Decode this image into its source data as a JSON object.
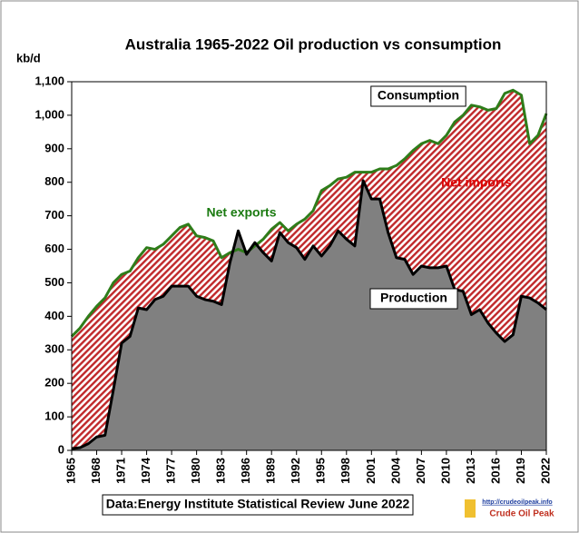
{
  "chart_data": {
    "type": "area",
    "title": "Australia  1965-2022 Oil production  vs consumption",
    "y_label": "kb/d",
    "source": "Data:Energy Institute Statistical Review June 2022",
    "logo": {
      "url": "http://crudeoilpeak.info",
      "name": "Crude Oil Peak"
    },
    "annotations": [
      {
        "text": "Consumption",
        "color": "#000000",
        "boxed": true
      },
      {
        "text": "Net exports",
        "color": "#1a7a10",
        "boxed": false
      },
      {
        "text": "Net imports",
        "color": "#e00000",
        "boxed": false
      },
      {
        "text": "Production",
        "color": "#000000",
        "boxed": true
      }
    ],
    "x": [
      1965,
      1966,
      1967,
      1968,
      1969,
      1970,
      1971,
      1972,
      1973,
      1974,
      1975,
      1976,
      1977,
      1978,
      1979,
      1980,
      1981,
      1982,
      1983,
      1984,
      1985,
      1986,
      1987,
      1988,
      1989,
      1990,
      1991,
      1992,
      1993,
      1994,
      1995,
      1996,
      1997,
      1998,
      1999,
      2000,
      2001,
      2002,
      2003,
      2004,
      2005,
      2006,
      2007,
      2008,
      2009,
      2010,
      2011,
      2012,
      2013,
      2014,
      2015,
      2016,
      2017,
      2018,
      2019,
      2020,
      2021,
      2022
    ],
    "series": [
      {
        "name": "Consumption",
        "color": "#2e7d1a",
        "fill": "#c0282a",
        "values": [
          340,
          365,
          400,
          430,
          455,
          500,
          525,
          535,
          575,
          605,
          600,
          615,
          640,
          665,
          675,
          640,
          635,
          625,
          575,
          590,
          600,
          590,
          610,
          630,
          660,
          680,
          655,
          675,
          690,
          715,
          775,
          790,
          810,
          815,
          830,
          830,
          830,
          840,
          840,
          850,
          870,
          895,
          915,
          925,
          915,
          940,
          980,
          1000,
          1030,
          1025,
          1015,
          1020,
          1065,
          1075,
          1060,
          915,
          940,
          1005
        ]
      },
      {
        "name": "Production",
        "color": "#000000",
        "fill": "#808080",
        "values": [
          5,
          8,
          20,
          40,
          45,
          180,
          320,
          340,
          425,
          420,
          450,
          460,
          490,
          490,
          490,
          460,
          450,
          445,
          435,
          560,
          655,
          585,
          620,
          590,
          565,
          650,
          620,
          605,
          570,
          610,
          580,
          610,
          655,
          630,
          610,
          805,
          750,
          750,
          650,
          575,
          570,
          525,
          550,
          545,
          545,
          550,
          480,
          475,
          405,
          420,
          380,
          350,
          325,
          345,
          460,
          455,
          440,
          420
        ]
      }
    ],
    "xlim": [
      1965,
      2022
    ],
    "xticks": [
      1965,
      1968,
      1971,
      1974,
      1977,
      1980,
      1983,
      1986,
      1989,
      1992,
      1995,
      1998,
      2001,
      2004,
      2007,
      2010,
      2013,
      2016,
      2019,
      2022
    ],
    "ylim": [
      0,
      1100
    ],
    "yticks": [
      0,
      100,
      200,
      300,
      400,
      500,
      600,
      700,
      800,
      900,
      {
        "value": 1000,
        "label": "1,000"
      },
      {
        "value": 1100,
        "label": "1,100"
      }
    ]
  }
}
